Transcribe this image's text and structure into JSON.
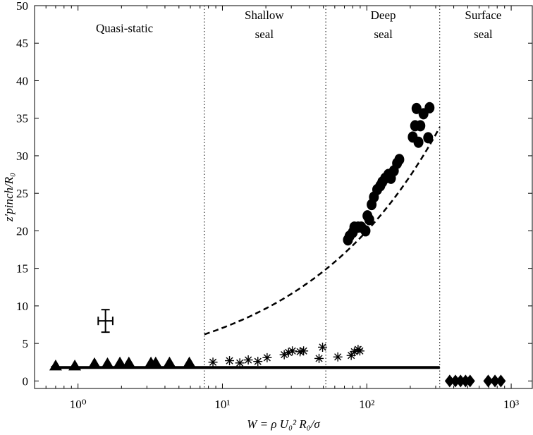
{
  "chart_data": {
    "type": "scatter",
    "xscale": "log",
    "xlim": [
      0.5,
      1400
    ],
    "ylim": [
      -1,
      50
    ],
    "xlabel": "W = ρ U₀² R₀/σ",
    "ylabel": "z′pinch/R₀",
    "yticks": [
      "0",
      "5",
      "10",
      "15",
      "20",
      "25",
      "30",
      "35",
      "40",
      "45",
      "50"
    ],
    "xticks": [
      {
        "value": 1,
        "label": "10⁰"
      },
      {
        "value": 10,
        "label": "10¹"
      },
      {
        "value": 100,
        "label": "10²"
      },
      {
        "value": 1000,
        "label": "10³"
      }
    ],
    "grid": false,
    "region_boundaries": [
      7.5,
      52,
      320
    ],
    "regions": [
      {
        "lines": [
          "Quasi-static"
        ],
        "x": 2.1,
        "y": [
          46.5
        ]
      },
      {
        "lines": [
          "Shallow",
          "seal"
        ],
        "x": 19.5,
        "y": [
          48.2,
          45.7
        ]
      },
      {
        "lines": [
          "Deep",
          "seal"
        ],
        "x": 130,
        "y": [
          48.2,
          45.7
        ]
      },
      {
        "lines": [
          "Surface",
          "seal"
        ],
        "x": 640,
        "y": [
          48.2,
          45.7
        ]
      }
    ],
    "series": [
      {
        "marker": "triangle",
        "points": [
          [
            0.7,
            2.0
          ],
          [
            0.95,
            2.0
          ],
          [
            1.3,
            2.3
          ],
          [
            1.6,
            2.3
          ],
          [
            1.95,
            2.4
          ],
          [
            2.25,
            2.4
          ],
          [
            3.2,
            2.4
          ],
          [
            3.45,
            2.4
          ],
          [
            4.3,
            2.4
          ],
          [
            5.9,
            2.4
          ]
        ]
      },
      {
        "marker": "asterisk",
        "points": [
          [
            8.6,
            2.5
          ],
          [
            11.2,
            2.7
          ],
          [
            13.2,
            2.4
          ],
          [
            15.1,
            2.8
          ],
          [
            17.6,
            2.6
          ],
          [
            20.4,
            3.1
          ],
          [
            26.8,
            3.5
          ],
          [
            28.7,
            3.8
          ],
          [
            30.5,
            4.0
          ],
          [
            34.5,
            3.9
          ],
          [
            36.5,
            4.0
          ],
          [
            46.7,
            3.0
          ],
          [
            49.4,
            4.5
          ],
          [
            63,
            3.2
          ],
          [
            78,
            3.4
          ],
          [
            82,
            3.9
          ],
          [
            87,
            4.2
          ],
          [
            89.5,
            4.0
          ]
        ]
      },
      {
        "marker": "circle",
        "points": [
          [
            74,
            18.8
          ],
          [
            76,
            19.3
          ],
          [
            80,
            19.8
          ],
          [
            82,
            20.5
          ],
          [
            87,
            20.5
          ],
          [
            91.5,
            20.5
          ],
          [
            98,
            20.0
          ],
          [
            101,
            22.0
          ],
          [
            104,
            21.5
          ],
          [
            108,
            23.5
          ],
          [
            112,
            24.5
          ],
          [
            118,
            25.5
          ],
          [
            124,
            26.0
          ],
          [
            128,
            26.5
          ],
          [
            134,
            27.0
          ],
          [
            141,
            27.5
          ],
          [
            147,
            27.0
          ],
          [
            154,
            28.0
          ],
          [
            162,
            29.0
          ],
          [
            168,
            29.5
          ],
          [
            208,
            32.5
          ],
          [
            216,
            34.0
          ],
          [
            221,
            36.3
          ],
          [
            228,
            31.8
          ],
          [
            235,
            34.0
          ],
          [
            247,
            35.6
          ],
          [
            266,
            32.4
          ],
          [
            272,
            36.4
          ]
        ]
      },
      {
        "marker": "diamond",
        "points": [
          [
            375,
            0.0
          ],
          [
            411,
            0.0
          ],
          [
            446,
            0.0
          ],
          [
            483,
            0.0
          ],
          [
            519,
            0.0
          ],
          [
            693,
            0.0
          ],
          [
            772,
            0.0
          ],
          [
            848,
            0.0
          ]
        ]
      }
    ],
    "fits": [
      {
        "style": "dashed",
        "note": "scaling curve",
        "x_range": [
          7.5,
          320
        ],
        "y_at_start": 6.2,
        "y_at_end": 33.8
      },
      {
        "style": "solid",
        "note": "constant level",
        "x_range": [
          0.65,
          320
        ],
        "y": 1.8
      }
    ],
    "error_bar": {
      "x": 1.55,
      "y": 8.0,
      "x_low": 1.38,
      "x_high": 1.74,
      "y_low": 6.5,
      "y_high": 9.5
    }
  }
}
